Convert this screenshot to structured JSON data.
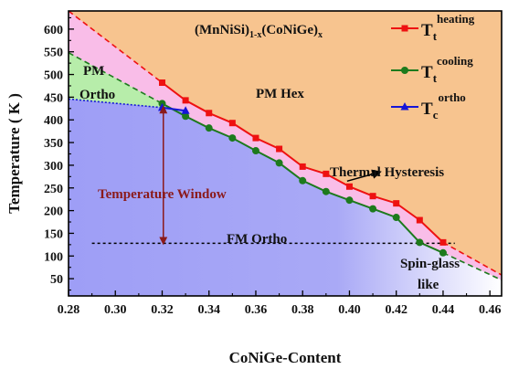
{
  "chart_data": {
    "type": "line",
    "title": "",
    "xlabel": "CoNiGe-Content",
    "ylabel": "Temperature ( K )",
    "xlim": [
      0.28,
      0.465
    ],
    "ylim": [
      12,
      640
    ],
    "x_ticks": [
      0.28,
      0.3,
      0.32,
      0.34,
      0.36,
      0.38,
      0.4,
      0.42,
      0.44,
      0.46
    ],
    "x_tick_labels": [
      "0.28",
      "0.30",
      "0.32",
      "0.34",
      "0.36",
      "0.38",
      "0.40",
      "0.42",
      "0.44",
      "0.46"
    ],
    "y_ticks": [
      50,
      100,
      150,
      200,
      250,
      300,
      350,
      400,
      450,
      500,
      550,
      600
    ],
    "y_tick_labels": [
      "50",
      "100",
      "150",
      "200",
      "250",
      "300",
      "350",
      "400",
      "450",
      "500",
      "550",
      "600"
    ],
    "grid": false,
    "legend_position": "top-right",
    "composition_label": {
      "prefix": "(MnNiSi)",
      "sub1": "1-x",
      "middle": "(CoNiGe)",
      "sub2": "x"
    },
    "series": [
      {
        "name": "Tt heating",
        "symbol": "T",
        "subscript": "t",
        "superscript": "heating",
        "color": "#ee1111",
        "marker": "square",
        "x": [
          0.32,
          0.33,
          0.34,
          0.35,
          0.36,
          0.37,
          0.38,
          0.39,
          0.4,
          0.41,
          0.42,
          0.43,
          0.44
        ],
        "y": [
          482,
          443,
          415,
          393,
          360,
          336,
          297,
          281,
          253,
          232,
          216,
          179,
          130
        ]
      },
      {
        "name": "Tt cooling",
        "symbol": "T",
        "subscript": "t",
        "superscript": "cooling",
        "color": "#1d7a1d",
        "marker": "circle",
        "x": [
          0.32,
          0.33,
          0.34,
          0.35,
          0.36,
          0.37,
          0.38,
          0.39,
          0.4,
          0.41,
          0.42,
          0.43,
          0.44
        ],
        "y": [
          436,
          408,
          382,
          360,
          332,
          305,
          266,
          242,
          223,
          204,
          185,
          130,
          107
        ]
      },
      {
        "name": "Tc ortho",
        "symbol": "T",
        "subscript": "c",
        "superscript": "ortho",
        "color": "#1515d8",
        "marker": "triangle",
        "x": [
          0.32,
          0.33
        ],
        "y": [
          427,
          420
        ]
      }
    ],
    "extrapolations": {
      "heating_left": {
        "x": [
          0.28,
          0.32
        ],
        "y": [
          640,
          482
        ]
      },
      "heating_right": {
        "x": [
          0.44,
          0.465
        ],
        "y": [
          130,
          58
        ]
      },
      "cooling_left": {
        "x": [
          0.28,
          0.32
        ],
        "y": [
          548,
          436
        ]
      },
      "cooling_right": {
        "x": [
          0.44,
          0.465
        ],
        "y": [
          107,
          47
        ]
      },
      "ortho_left": {
        "x": [
          0.28,
          0.32
        ],
        "y": [
          446,
          427
        ]
      },
      "hline_y": 128,
      "hline_x": [
        0.29,
        0.445
      ]
    },
    "regions": {
      "pm_hex_color": "#f7c48f",
      "pm_ortho_color": "#b7edaa",
      "fm_ortho_color": "#9e9ef6",
      "hysteresis_color": "#f9bde8"
    },
    "annotations": {
      "pm_hex": "PM Hex",
      "pm_ortho_line1": "PM",
      "pm_ortho_line2": "Ortho",
      "fm_ortho": "FM Ortho",
      "thermal_hysteresis": "Thermal Hysteresis",
      "temperature_window": "Temperature Window",
      "spin_glass_line1": "Spin-glass",
      "spin_glass_line2": "like"
    }
  }
}
